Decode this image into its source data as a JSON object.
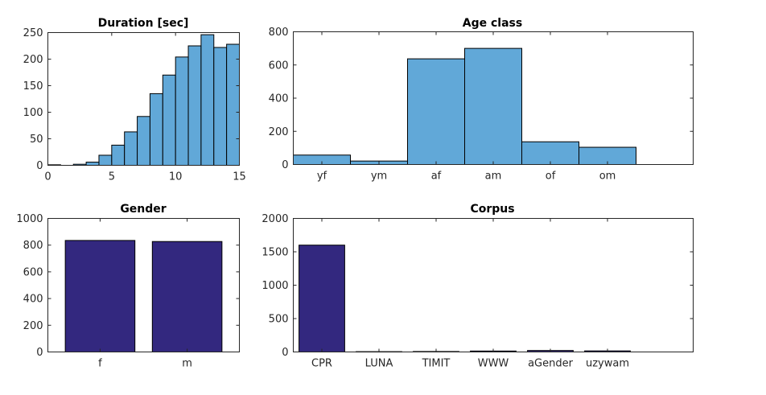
{
  "colors": {
    "light_bar": "#61a8d8",
    "dark_bar": "#33287f",
    "axis": "#262626",
    "background": "#ffffff"
  },
  "chart_data": [
    {
      "id": "duration",
      "type": "bar",
      "title": "Duration [sec]",
      "histogram": true,
      "bin_width": 1,
      "bin_edges": [
        0,
        1,
        2,
        3,
        4,
        5,
        6,
        7,
        8,
        9,
        10,
        11,
        12,
        13,
        14,
        15
      ],
      "values": [
        1,
        0,
        2,
        6,
        19,
        38,
        63,
        92,
        135,
        170,
        204,
        225,
        246,
        222,
        228
      ],
      "xlim": [
        0,
        15
      ],
      "ylim": [
        0,
        250
      ],
      "xticks": [
        0,
        5,
        10,
        15
      ],
      "yticks": [
        0,
        50,
        100,
        150,
        200,
        250
      ],
      "color": "#61a8d8"
    },
    {
      "id": "age-class",
      "type": "bar",
      "title": "Age class",
      "histogram": true,
      "categories": [
        "yf",
        "ym",
        "af",
        "am",
        "of",
        "om"
      ],
      "values": [
        57,
        21,
        637,
        700,
        137,
        104
      ],
      "ylim": [
        0,
        800
      ],
      "yticks": [
        0,
        200,
        400,
        600,
        800
      ],
      "color": "#61a8d8"
    },
    {
      "id": "gender",
      "type": "bar",
      "title": "Gender",
      "categories": [
        "f",
        "m"
      ],
      "values": [
        835,
        827
      ],
      "ylim": [
        0,
        1000
      ],
      "yticks": [
        0,
        200,
        400,
        600,
        800,
        1000
      ],
      "color": "#33287f"
    },
    {
      "id": "corpus",
      "type": "bar",
      "title": "Corpus",
      "categories": [
        "CPR",
        "LUNA",
        "TIMIT",
        "WWW",
        "aGender",
        "uzywam"
      ],
      "values": [
        1600,
        5,
        7,
        14,
        22,
        16
      ],
      "ylim": [
        0,
        2000
      ],
      "yticks": [
        0,
        500,
        1000,
        1500,
        2000
      ],
      "color": "#33287f"
    }
  ]
}
